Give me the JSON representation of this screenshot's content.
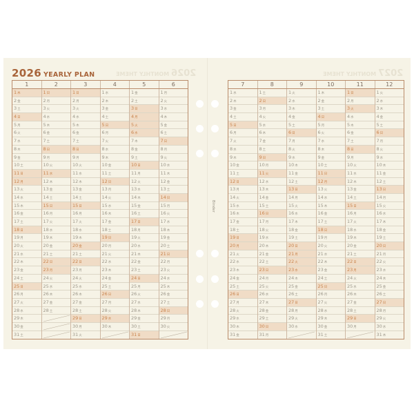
{
  "title": {
    "year": "2026",
    "label": "YEARLY PLAN"
  },
  "ghost_left": {
    "year": "2026",
    "label": "MONTHLY THEME"
  },
  "ghost_right": {
    "year": "2027",
    "label": "MONTHLY THEME"
  },
  "binder_label": "Binder",
  "calendar": {
    "year": 2026,
    "left_months": [
      1,
      2,
      3,
      4,
      5,
      6
    ],
    "right_months": [
      7,
      8,
      9,
      10,
      11,
      12
    ],
    "weekdays": [
      "日",
      "月",
      "火",
      "水",
      "木",
      "金",
      "土"
    ],
    "holidays": [
      "1-1",
      "1-12",
      "2-11",
      "2-23",
      "3-20",
      "4-29",
      "5-3",
      "5-4",
      "5-5",
      "5-6",
      "7-20",
      "8-11",
      "9-21",
      "9-22",
      "9-23",
      "10-12",
      "11-3",
      "11-23"
    ],
    "sundays_highlighted": true
  },
  "colors": {
    "title": "#a8643a",
    "highlight": "#f0dcc6",
    "highlight_text": "#c9834c",
    "border": "#b98b6a",
    "paper": "#f6f3e6"
  }
}
